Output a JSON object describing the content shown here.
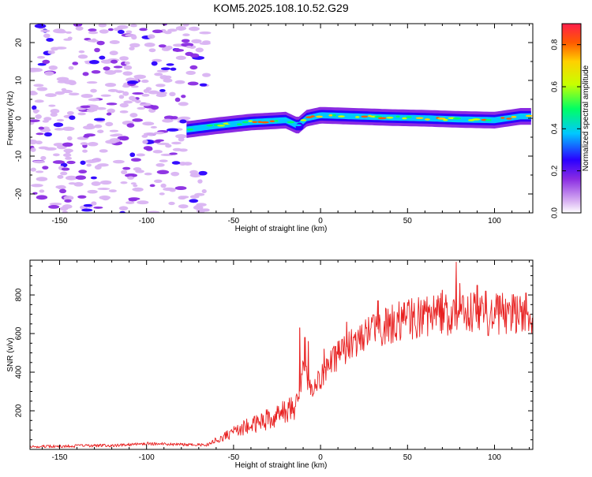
{
  "title": "KOM5.2025.108.10.52.G29",
  "chart_data": [
    {
      "type": "heatmap",
      "xlabel": "Height of straight line (km)",
      "ylabel": "Frequency (Hz)",
      "xlim": [
        -167,
        122
      ],
      "ylim": [
        -25,
        25
      ],
      "xticks": [
        -150,
        -100,
        -50,
        0,
        50,
        100
      ],
      "yticks": [
        -20,
        -10,
        0,
        10,
        20
      ],
      "colorbar": {
        "label": "Normalized spectral amplitude",
        "range": [
          0,
          0.9
        ],
        "ticks": [
          0.0,
          0.2,
          0.4,
          0.6,
          0.8
        ],
        "colors": [
          "#ffffff",
          "#d9b3f2",
          "#8a2be2",
          "#2a00ff",
          "#00c8ff",
          "#00ff64",
          "#c8ff00",
          "#ffd000",
          "#ff5a00",
          "#ff1e4b"
        ]
      },
      "signal_band": {
        "x_range": [
          -77,
          122
        ],
        "center_freq_hz": [
          [
            -77,
            -3
          ],
          [
            -60,
            -2
          ],
          [
            -40,
            -1
          ],
          [
            -20,
            -0.5
          ],
          [
            -13,
            -2
          ],
          [
            -8,
            0
          ],
          [
            0,
            0.8
          ],
          [
            20,
            0.5
          ],
          [
            40,
            0.2
          ],
          [
            60,
            0
          ],
          [
            80,
            -0.3
          ],
          [
            100,
            -0.5
          ],
          [
            115,
            0.5
          ],
          [
            122,
            0.5
          ]
        ],
        "peak_amplitude": 0.85
      },
      "noise_region": {
        "x_range": [
          -167,
          -75
        ],
        "freq_range": [
          -25,
          25
        ],
        "amplitude": [
          0.05,
          0.3
        ]
      },
      "grid": false
    },
    {
      "type": "line",
      "xlabel": "Height of straight line (km)",
      "ylabel": "SNR (v/v)",
      "xlim": [
        -167,
        122
      ],
      "ylim": [
        0,
        980
      ],
      "xticks": [
        -150,
        -100,
        -50,
        0,
        50,
        100
      ],
      "yticks": [
        200,
        400,
        600,
        800
      ],
      "series": [
        {
          "color": "#e82020",
          "trend": [
            [
              -167,
              15
            ],
            [
              -120,
              20
            ],
            [
              -100,
              30
            ],
            [
              -80,
              25
            ],
            [
              -65,
              25
            ],
            [
              -55,
              70
            ],
            [
              -45,
              110
            ],
            [
              -35,
              140
            ],
            [
              -25,
              175
            ],
            [
              -15,
              215
            ],
            [
              -12,
              300
            ],
            [
              -10,
              430
            ],
            [
              -8,
              380
            ],
            [
              -5,
              310
            ],
            [
              0,
              370
            ],
            [
              5,
              430
            ],
            [
              10,
              490
            ],
            [
              15,
              530
            ],
            [
              20,
              570
            ],
            [
              30,
              610
            ],
            [
              40,
              650
            ],
            [
              50,
              670
            ],
            [
              60,
              690
            ],
            [
              70,
              700
            ],
            [
              80,
              700
            ],
            [
              90,
              700
            ],
            [
              100,
              700
            ],
            [
              110,
              700
            ],
            [
              122,
              700
            ]
          ],
          "spikes": [
            [
              -12,
              630
            ],
            [
              -9,
              580
            ],
            [
              -7,
              560
            ],
            [
              2,
              520
            ],
            [
              10,
              560
            ],
            [
              15,
              660
            ],
            [
              33,
              770
            ],
            [
              48,
              760
            ],
            [
              70,
              825
            ],
            [
              78,
              970
            ],
            [
              80,
              860
            ],
            [
              90,
              850
            ],
            [
              95,
              820
            ],
            [
              103,
              795
            ],
            [
              112,
              790
            ],
            [
              118,
              810
            ]
          ]
        }
      ],
      "grid": false
    }
  ]
}
